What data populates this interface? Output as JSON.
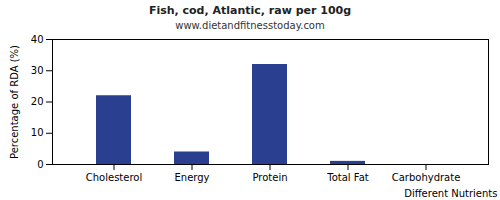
{
  "chart_data": {
    "type": "bar",
    "title": "Fish, cod, Atlantic, raw per 100g",
    "subtitle": "www.dietandfitnesstoday.com",
    "x_label": "Different Nutrients",
    "y_label": "Percentage of RDA (%)",
    "categories": [
      "Cholesterol",
      "Energy",
      "Protein",
      "Total Fat",
      "Carbohydrate"
    ],
    "values": [
      22,
      4,
      32,
      1,
      0
    ],
    "color": "#2a3f8f",
    "ylim": [
      0,
      40
    ],
    "yticks": [
      0,
      10,
      20,
      30,
      40
    ],
    "grid": false
  }
}
